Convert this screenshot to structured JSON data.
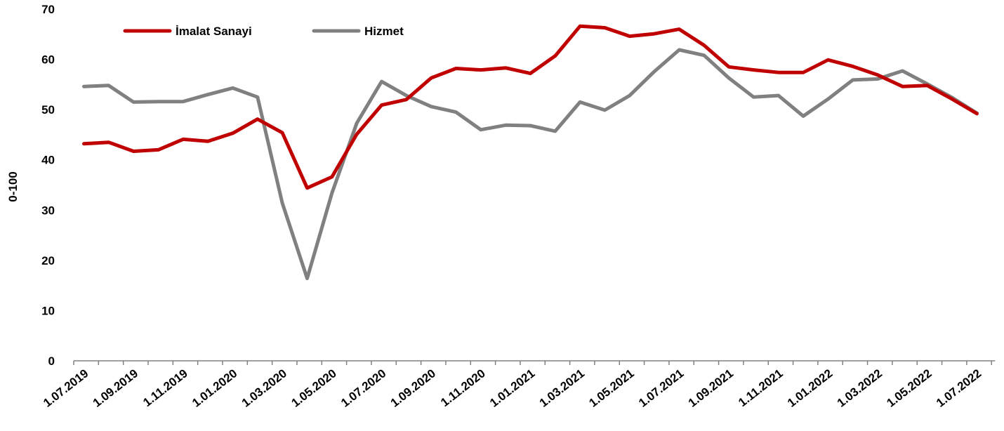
{
  "chart_data": {
    "type": "line",
    "ylabel": "0-100",
    "ylim": [
      0,
      70
    ],
    "yticks": [
      "0",
      "10",
      "20",
      "30",
      "40",
      "50",
      "60",
      "70"
    ],
    "xtick_labels": [
      "1.07.2019",
      "1.09.2019",
      "1.11.2019",
      "1.01.2020",
      "1.03.2020",
      "1.05.2020",
      "1.07.2020",
      "1.09.2020",
      "1.11.2020",
      "1.01.2021",
      "1.03.2021",
      "1.05.2021",
      "1.07.2021",
      "1.09.2021",
      "1.11.2021",
      "1.01.2022",
      "1.03.2022",
      "1.05.2022",
      "1.07.2022"
    ],
    "grid": false,
    "legend_position": "top-left",
    "series": [
      {
        "name": "İmalat Sanayi",
        "color": "#C00000",
        "values": [
          43.2,
          43.5,
          41.7,
          42.0,
          44.1,
          43.7,
          45.3,
          48.1,
          45.4,
          34.4,
          36.6,
          45.1,
          50.9,
          52.0,
          56.3,
          58.2,
          57.9,
          58.3,
          57.2,
          60.7,
          66.6,
          66.3,
          64.6,
          65.1,
          66.0,
          62.8,
          58.5,
          57.9,
          57.4,
          57.4,
          59.9,
          58.6,
          56.9,
          54.6,
          54.8,
          52.1,
          49.2
        ]
      },
      {
        "name": "Hizmet",
        "color": "#808080",
        "values": [
          54.6,
          54.8,
          51.5,
          51.6,
          51.6,
          53.0,
          54.3,
          52.5,
          31.4,
          16.4,
          33.4,
          47.3,
          55.6,
          52.8,
          50.6,
          49.5,
          46.0,
          46.9,
          46.8,
          45.7,
          51.5,
          49.9,
          52.8,
          57.6,
          61.9,
          60.8,
          56.3,
          52.5,
          52.8,
          48.7,
          52.1,
          55.9,
          56.1,
          57.7,
          55.1,
          52.4,
          49.3
        ]
      }
    ]
  }
}
